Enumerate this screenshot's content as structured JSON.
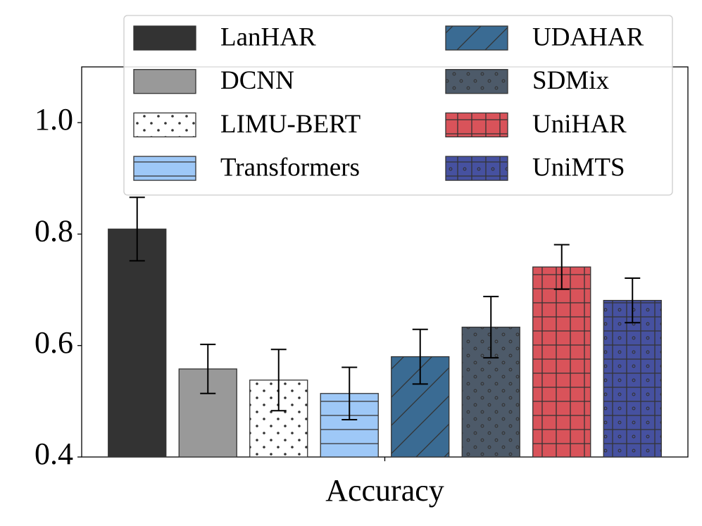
{
  "chart_data": {
    "type": "bar",
    "categories": [
      "Accuracy"
    ],
    "series": [
      {
        "name": "LanHAR",
        "color": "#333333",
        "hatch": "",
        "values": [
          0.809
        ],
        "errors": [
          0.057
        ]
      },
      {
        "name": "DCNN",
        "color": "#999999",
        "hatch": "",
        "values": [
          0.558
        ],
        "errors": [
          0.044
        ]
      },
      {
        "name": "LIMU-BERT",
        "color": "#ffffff",
        "hatch": "..",
        "values": [
          0.538
        ],
        "errors": [
          0.055
        ]
      },
      {
        "name": "Transformers",
        "color": "#9ec8f7",
        "hatch": "-",
        "values": [
          0.514
        ],
        "errors": [
          0.047
        ]
      },
      {
        "name": "UDAHAR",
        "color": "#3a6b93",
        "hatch": "/",
        "values": [
          0.58
        ],
        "errors": [
          0.049
        ]
      },
      {
        "name": "SDMix",
        "color": "#4d5a69",
        "hatch": "o",
        "values": [
          0.633
        ],
        "errors": [
          0.055
        ]
      },
      {
        "name": "UniHAR",
        "color": "#d9535a",
        "hatch": "+",
        "values": [
          0.741
        ],
        "errors": [
          0.04
        ]
      },
      {
        "name": "UniMTS",
        "color": "#4651a0",
        "hatch": "+o",
        "values": [
          0.681
        ],
        "errors": [
          0.04
        ]
      }
    ],
    "ylim": [
      0.4,
      1.1
    ],
    "yticks": [
      0.4,
      0.6,
      0.8,
      {
        "value": 1,
        "label": "1.0"
      }
    ],
    "legend": "upper right"
  }
}
